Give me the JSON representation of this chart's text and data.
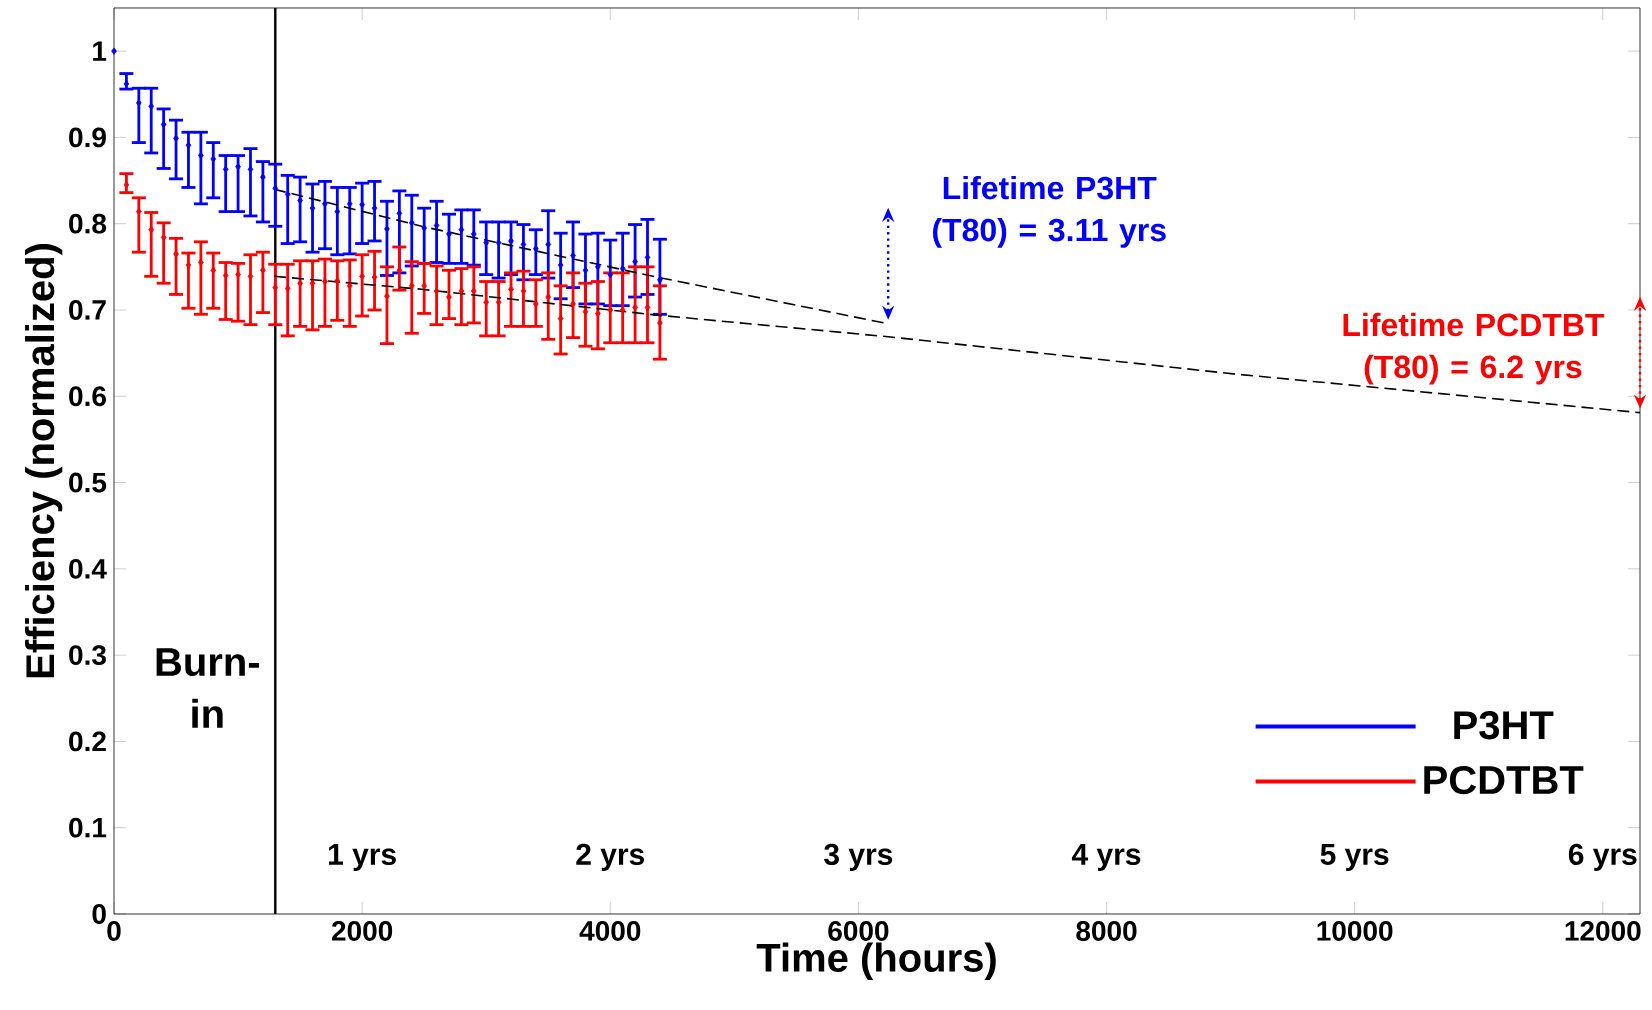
{
  "chart_data": {
    "type": "scatter",
    "xlabel": "Time (hours)",
    "ylabel": "Efficiency (normalized)",
    "xlim": [
      0,
      12300
    ],
    "ylim": [
      0,
      1.05
    ],
    "xticks": [
      0,
      2000,
      4000,
      6000,
      8000,
      10000,
      12000
    ],
    "yticks": [
      0,
      0.1,
      0.2,
      0.3,
      0.4,
      0.5,
      0.6,
      0.7,
      0.8,
      0.9,
      1
    ],
    "x2lim": [
      0,
      6.15
    ],
    "x2ticks": [
      {
        "value": 1,
        "label": "1 yrs"
      },
      {
        "value": 2,
        "label": "2 yrs"
      },
      {
        "value": 3,
        "label": "3 yrs"
      },
      {
        "value": 4,
        "label": "4 yrs"
      },
      {
        "value": 5,
        "label": "5 yrs"
      },
      {
        "value": 6,
        "label": "6 yrs"
      }
    ],
    "x": [
      0,
      100,
      200,
      300,
      400,
      500,
      600,
      700,
      800,
      900,
      1000,
      1100,
      1200,
      1300,
      1400,
      1500,
      1600,
      1700,
      1800,
      1900,
      2000,
      2100,
      2200,
      2300,
      2400,
      2500,
      2600,
      2700,
      2800,
      2900,
      3000,
      3100,
      3200,
      3300,
      3400,
      3500,
      3600,
      3700,
      3800,
      3900,
      4000,
      4100,
      4200,
      4300,
      4400
    ],
    "marker": "diamond",
    "grid": false,
    "legend": "bottom right",
    "series": [
      {
        "name": "P3HT",
        "color": "#0000ff",
        "values": [
          1.0,
          0.962,
          0.94,
          0.936,
          0.915,
          0.899,
          0.891,
          0.879,
          0.875,
          0.863,
          0.866,
          0.863,
          0.854,
          0.841,
          0.834,
          0.827,
          0.818,
          0.823,
          0.814,
          0.823,
          0.822,
          0.818,
          0.794,
          0.812,
          0.801,
          0.795,
          0.798,
          0.788,
          0.793,
          0.788,
          0.778,
          0.778,
          0.78,
          0.776,
          0.771,
          0.776,
          0.752,
          0.763,
          0.746,
          0.75,
          0.741,
          0.748,
          0.756,
          0.761,
          0.735
        ],
        "errors": [
          null,
          [
            0.956,
            0.974
          ],
          [
            0.894,
            0.957
          ],
          [
            0.882,
            0.957
          ],
          [
            0.864,
            0.933
          ],
          [
            0.852,
            0.92
          ],
          [
            0.842,
            0.906
          ],
          [
            0.823,
            0.906
          ],
          [
            0.83,
            0.894
          ],
          [
            0.814,
            0.879
          ],
          [
            0.814,
            0.879
          ],
          [
            0.809,
            0.887
          ],
          [
            0.802,
            0.872
          ],
          [
            0.797,
            0.869
          ],
          [
            0.777,
            0.856
          ],
          [
            0.779,
            0.854
          ],
          [
            0.767,
            0.846
          ],
          [
            0.771,
            0.849
          ],
          [
            0.764,
            0.842
          ],
          [
            0.765,
            0.842
          ],
          [
            0.777,
            0.847
          ],
          [
            0.78,
            0.849
          ],
          [
            0.74,
            0.826
          ],
          [
            0.743,
            0.838
          ],
          [
            0.751,
            0.833
          ],
          [
            0.754,
            0.818
          ],
          [
            0.755,
            0.826
          ],
          [
            0.754,
            0.811
          ],
          [
            0.754,
            0.816
          ],
          [
            0.752,
            0.816
          ],
          [
            0.741,
            0.802
          ],
          [
            0.737,
            0.802
          ],
          [
            0.741,
            0.802
          ],
          [
            0.735,
            0.799
          ],
          [
            0.741,
            0.793
          ],
          [
            0.737,
            0.815
          ],
          [
            0.713,
            0.789
          ],
          [
            0.726,
            0.802
          ],
          [
            0.707,
            0.788
          ],
          [
            0.707,
            0.789
          ],
          [
            0.705,
            0.781
          ],
          [
            0.705,
            0.789
          ],
          [
            0.715,
            0.799
          ],
          [
            0.718,
            0.805
          ],
          [
            0.695,
            0.782
          ]
        ]
      },
      {
        "name": "PCDTBT",
        "color": "#ff0000",
        "values": [
          null,
          0.845,
          0.814,
          0.793,
          0.784,
          0.765,
          0.752,
          0.755,
          0.746,
          0.74,
          0.741,
          0.739,
          0.746,
          0.726,
          0.725,
          0.731,
          0.731,
          0.733,
          0.734,
          0.728,
          0.739,
          0.738,
          0.716,
          0.746,
          0.728,
          0.728,
          0.722,
          0.715,
          0.722,
          0.722,
          0.709,
          0.709,
          0.724,
          0.722,
          0.707,
          0.715,
          0.69,
          0.707,
          0.698,
          0.696,
          0.7,
          0.7,
          0.703,
          0.703,
          0.685
        ],
        "errors": [
          null,
          [
            0.836,
            0.858
          ],
          [
            0.767,
            0.83
          ],
          [
            0.739,
            0.813
          ],
          [
            0.731,
            0.801
          ],
          [
            0.718,
            0.783
          ],
          [
            0.702,
            0.766
          ],
          [
            0.695,
            0.779
          ],
          [
            0.702,
            0.766
          ],
          [
            0.689,
            0.755
          ],
          [
            0.687,
            0.754
          ],
          [
            0.683,
            0.764
          ],
          [
            0.697,
            0.767
          ],
          [
            0.683,
            0.753
          ],
          [
            0.67,
            0.753
          ],
          [
            0.681,
            0.757
          ],
          [
            0.677,
            0.757
          ],
          [
            0.681,
            0.759
          ],
          [
            0.688,
            0.757
          ],
          [
            0.681,
            0.758
          ],
          [
            0.693,
            0.764
          ],
          [
            0.7,
            0.768
          ],
          [
            0.661,
            0.75
          ],
          [
            0.723,
            0.773
          ],
          [
            0.673,
            0.756
          ],
          [
            0.696,
            0.754
          ],
          [
            0.683,
            0.751
          ],
          [
            0.69,
            0.746
          ],
          [
            0.683,
            0.748
          ],
          [
            0.685,
            0.75
          ],
          [
            0.67,
            0.733
          ],
          [
            0.67,
            0.733
          ],
          [
            0.681,
            0.743
          ],
          [
            0.681,
            0.745
          ],
          [
            0.681,
            0.735
          ],
          [
            0.666,
            0.743
          ],
          [
            0.649,
            0.728
          ],
          [
            0.668,
            0.743
          ],
          [
            0.658,
            0.731
          ],
          [
            0.655,
            0.733
          ],
          [
            0.662,
            0.743
          ],
          [
            0.662,
            0.743
          ],
          [
            0.662,
            0.75
          ],
          [
            0.662,
            0.75
          ],
          [
            0.643,
            0.728
          ]
        ]
      },
      {
        "type": "line",
        "color": "#000000",
        "line_style": "dashed",
        "marker": "none",
        "x": [
          1290,
          2480,
          4380,
          6240
        ],
        "values": [
          0.84,
          0.797,
          0.738,
          0.684
        ]
      },
      {
        "type": "line",
        "color": "#000000",
        "line_style": "dashed",
        "marker": "none",
        "x": [
          1290,
          2480,
          4380,
          6240,
          9020,
          12300
        ],
        "values": [
          0.739,
          0.724,
          0.694,
          0.669,
          0.626,
          0.581
        ]
      }
    ],
    "ref_lines": [
      {
        "axis": "x",
        "value": 1300,
        "label": "Burn-in",
        "color": "#000000"
      }
    ],
    "annotations": [
      {
        "text": "Lifetime P3HT (T80) = 3.11 yrs",
        "x": 6240,
        "y": 0.684
      },
      {
        "text": "Lifetime PCDTBT (T80) = 6.2 yrs",
        "x": 12300,
        "y": 0.581
      }
    ]
  }
}
